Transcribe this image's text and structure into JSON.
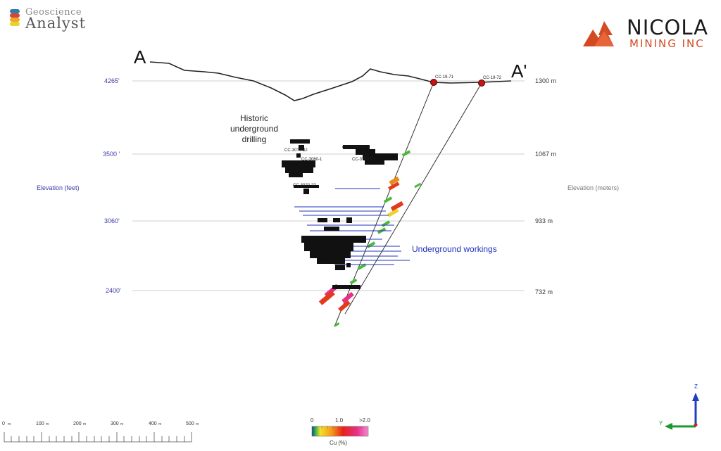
{
  "logos": {
    "geoscience_top": "Geoscience",
    "geoscience_bottom": "Analyst",
    "nicola_name": "NICOLA",
    "nicola_sub": "MINING INC",
    "nicola_color": "#d34a22"
  },
  "section": {
    "start_label": "A",
    "end_label": "A'",
    "feet_axis_label": "Elevation (feet)",
    "meters_axis_label": "Elevation (meters)",
    "elevation_lines": [
      {
        "feet": "4265'",
        "meters": "1300 m"
      },
      {
        "feet": "3500 '",
        "meters": "1067 m"
      },
      {
        "feet": "3060'",
        "meters": "933 m"
      },
      {
        "feet": "2400'",
        "meters": "732 m"
      }
    ],
    "holes": [
      "CC-19-71",
      "CC-19-72"
    ],
    "annotations": {
      "historic_line1": "Historic",
      "historic_line2": "underground",
      "historic_line3": "drilling",
      "workings": "Underground workings"
    },
    "sample_labels": [
      "CC-30??-32",
      "CC-3060-1",
      "CC-30??-??",
      "CC-3??0-??",
      "CC-3???-??"
    ]
  },
  "scale_bar": {
    "ticks": [
      "0",
      "100",
      "200",
      "300",
      "400",
      "500"
    ],
    "unit": "m"
  },
  "colorbar": {
    "ticks": [
      "0",
      "1.0",
      ">2.0"
    ],
    "label": "Cu (%)"
  },
  "axes_triad": {
    "z": "Z",
    "y": "Y",
    "colors": {
      "z": "#1f3fbf",
      "y": "#1a9a2a",
      "x": "#cc2222"
    }
  },
  "colors": {
    "feet_label": "#3b3baa",
    "workings": "#2233bb",
    "collar": "#cc1111"
  }
}
